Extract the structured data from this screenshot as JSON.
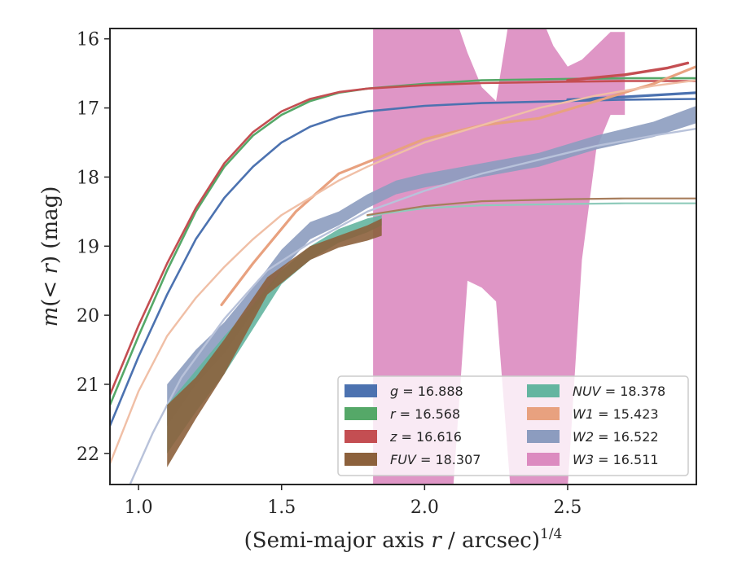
{
  "chart_data": {
    "type": "line",
    "title": "",
    "xlabel": "(Semi-major axis r / arcsec)",
    "xlabel_parts": {
      "main": "(Semi-major axis ",
      "var": "r",
      "rest": " / arcsec)",
      "sup": "1/4"
    },
    "ylabel_parts": {
      "m": "m",
      "open": "(",
      "lt": "< ",
      "r": "r",
      "close": ")",
      "unit": " (mag)"
    },
    "xlim": [
      0.9,
      2.95
    ],
    "ylim": [
      22.45,
      15.85
    ],
    "y_inverted": true,
    "xticks": [
      1.0,
      1.5,
      2.0,
      2.5
    ],
    "xtick_labels": [
      "1.0",
      "1.5",
      "2.0",
      "2.5"
    ],
    "yticks": [
      16,
      17,
      18,
      19,
      20,
      21,
      22
    ],
    "ytick_labels": [
      "16",
      "17",
      "18",
      "19",
      "20",
      "21",
      "22"
    ],
    "grid": false,
    "legend_placement": "lower-right",
    "legend_columns": 2,
    "legend": [
      {
        "name": "g",
        "text": " = 16.888",
        "color": "#4c72b0"
      },
      {
        "name": "r",
        "text": " = 16.568",
        "color": "#55a868"
      },
      {
        "name": "z",
        "text": " = 16.616",
        "color": "#c44e52"
      },
      {
        "name": "FUV",
        "text": " = 18.307",
        "color": "#8c613c"
      },
      {
        "name": "NUV",
        "text": " = 18.378",
        "color": "#64b5a0"
      },
      {
        "name": "W1",
        "text": " = 15.423",
        "color": "#e8a17f"
      },
      {
        "name": "W2",
        "text": " = 16.522",
        "color": "#8c9cbf"
      },
      {
        "name": "W3",
        "text": " = 16.511",
        "color": "#dc8bc0"
      }
    ],
    "series": [
      {
        "name": "W3",
        "color": "#dc8bc0",
        "kind": "band",
        "x": [
          1.82,
          1.9,
          1.96,
          2.0,
          2.05,
          2.1,
          2.15,
          2.2,
          2.25,
          2.3,
          2.35,
          2.4,
          2.45,
          2.5,
          2.55,
          2.6,
          2.65,
          2.7
        ],
        "low": [
          15.5,
          15.5,
          15.5,
          15.5,
          15.6,
          15.6,
          16.2,
          16.7,
          16.9,
          15.6,
          15.6,
          15.6,
          16.1,
          16.4,
          16.3,
          16.1,
          15.9,
          15.9
        ],
        "high": [
          22.5,
          22.5,
          22.5,
          22.5,
          22.5,
          22.5,
          19.5,
          19.6,
          19.8,
          22.5,
          22.5,
          22.5,
          22.5,
          22.5,
          19.2,
          17.6,
          17.1,
          17.1
        ]
      },
      {
        "name": "g",
        "color": "#4c72b0",
        "kind": "line",
        "width": 2.6,
        "x": [
          0.9,
          1.0,
          1.1,
          1.2,
          1.3,
          1.4,
          1.5,
          1.6,
          1.7,
          1.8,
          2.0,
          2.2,
          2.5,
          2.7,
          2.95
        ],
        "y": [
          21.6,
          20.6,
          19.7,
          18.9,
          18.3,
          17.85,
          17.5,
          17.27,
          17.13,
          17.05,
          16.97,
          16.93,
          16.9,
          16.88,
          16.87
        ]
      },
      {
        "name": "g_tail",
        "color": "#4c72b0",
        "kind": "line",
        "width": 3.2,
        "x": [
          2.5,
          2.7,
          2.95
        ],
        "y": [
          16.88,
          16.84,
          16.78
        ]
      },
      {
        "name": "r",
        "color": "#55a868",
        "kind": "line",
        "width": 2.6,
        "x": [
          0.9,
          1.0,
          1.1,
          1.2,
          1.3,
          1.4,
          1.5,
          1.6,
          1.7,
          1.8,
          2.0,
          2.2,
          2.5,
          2.7,
          2.95
        ],
        "y": [
          21.3,
          20.3,
          19.35,
          18.5,
          17.85,
          17.4,
          17.1,
          16.9,
          16.78,
          16.72,
          16.65,
          16.6,
          16.58,
          16.57,
          16.57
        ]
      },
      {
        "name": "z",
        "color": "#c44e52",
        "kind": "line",
        "width": 2.6,
        "x": [
          0.9,
          1.0,
          1.1,
          1.2,
          1.3,
          1.4,
          1.5,
          1.6,
          1.7,
          1.8,
          2.0,
          2.2,
          2.5,
          2.7,
          2.95
        ],
        "y": [
          21.15,
          20.15,
          19.25,
          18.45,
          17.8,
          17.35,
          17.05,
          16.87,
          16.77,
          16.72,
          16.67,
          16.64,
          16.62,
          16.61,
          16.61
        ]
      },
      {
        "name": "z_tail",
        "color": "#c44e52",
        "kind": "line",
        "width": 3.4,
        "x": [
          2.5,
          2.7,
          2.85,
          2.92
        ],
        "y": [
          16.6,
          16.52,
          16.42,
          16.35
        ]
      },
      {
        "name": "W1",
        "color": "#e8a17f",
        "kind": "line",
        "width": 3.2,
        "x": [
          1.29,
          1.4,
          1.55,
          1.7,
          1.85,
          2.0,
          2.2,
          2.4,
          2.6,
          2.8,
          2.95
        ],
        "y": [
          19.85,
          19.25,
          18.5,
          17.95,
          17.7,
          17.45,
          17.25,
          17.15,
          16.9,
          16.65,
          16.4
        ]
      },
      {
        "name": "W1_model",
        "color": "#f0bfa6",
        "kind": "line",
        "width": 2.4,
        "x": [
          0.9,
          1.0,
          1.1,
          1.2,
          1.3,
          1.4,
          1.5,
          1.6,
          1.7,
          1.8,
          2.0,
          2.2,
          2.4,
          2.6,
          2.8,
          2.95
        ],
        "y": [
          22.15,
          21.1,
          20.3,
          19.75,
          19.3,
          18.9,
          18.55,
          18.3,
          18.05,
          17.85,
          17.5,
          17.25,
          17.0,
          16.82,
          16.68,
          16.6
        ]
      },
      {
        "name": "W2_band",
        "color": "#8c9cbf",
        "kind": "band",
        "x": [
          1.1,
          1.2,
          1.3,
          1.4,
          1.5,
          1.6,
          1.7,
          1.8,
          1.9,
          2.0,
          2.2,
          2.4,
          2.6,
          2.8,
          2.95
        ],
        "low": [
          21.0,
          20.5,
          20.1,
          19.6,
          19.05,
          18.65,
          18.5,
          18.25,
          18.05,
          17.95,
          17.8,
          17.65,
          17.4,
          17.2,
          16.97
        ],
        "high": [
          21.6,
          21.0,
          20.55,
          19.95,
          19.35,
          18.9,
          18.7,
          18.45,
          18.25,
          18.15,
          18.0,
          17.85,
          17.6,
          17.42,
          17.22
        ]
      },
      {
        "name": "W2_model",
        "color": "#b8c2da",
        "kind": "line",
        "width": 2.4,
        "x": [
          0.97,
          1.05,
          1.15,
          1.3,
          1.45,
          1.6,
          1.8,
          2.0,
          2.2,
          2.4,
          2.6,
          2.8,
          2.95
        ],
        "y": [
          22.45,
          21.7,
          20.9,
          20.05,
          19.35,
          18.95,
          18.5,
          18.2,
          17.95,
          17.75,
          17.55,
          17.4,
          17.3
        ]
      },
      {
        "name": "NUV_band",
        "color": "#64b5a0",
        "kind": "band",
        "x": [
          1.1,
          1.2,
          1.3,
          1.4,
          1.5,
          1.6,
          1.7,
          1.8,
          1.85
        ],
        "low": [
          21.3,
          20.8,
          20.3,
          19.85,
          19.35,
          19.0,
          18.75,
          18.6,
          18.55
        ],
        "high": [
          22.0,
          21.4,
          20.85,
          20.2,
          19.55,
          19.2,
          18.95,
          18.8,
          18.7
        ]
      },
      {
        "name": "NUV_model",
        "color": "#8fcbbb",
        "kind": "line",
        "width": 2.2,
        "x": [
          1.8,
          2.0,
          2.2,
          2.5,
          2.7,
          2.95
        ],
        "y": [
          18.56,
          18.45,
          18.41,
          18.39,
          18.38,
          18.38
        ]
      },
      {
        "name": "FUV_band",
        "color": "#8c613c",
        "kind": "band",
        "x": [
          1.1,
          1.2,
          1.3,
          1.45,
          1.6,
          1.7,
          1.8,
          1.85
        ],
        "low": [
          21.3,
          20.9,
          20.35,
          19.45,
          19.0,
          18.85,
          18.7,
          18.6
        ],
        "high": [
          22.2,
          21.5,
          20.85,
          19.7,
          19.2,
          19.02,
          18.92,
          18.85
        ]
      },
      {
        "name": "FUV_model",
        "color": "#a77d5c",
        "kind": "line",
        "width": 2.2,
        "x": [
          1.8,
          2.0,
          2.2,
          2.5,
          2.7,
          2.95
        ],
        "y": [
          18.55,
          18.42,
          18.35,
          18.32,
          18.31,
          18.31
        ]
      }
    ]
  }
}
